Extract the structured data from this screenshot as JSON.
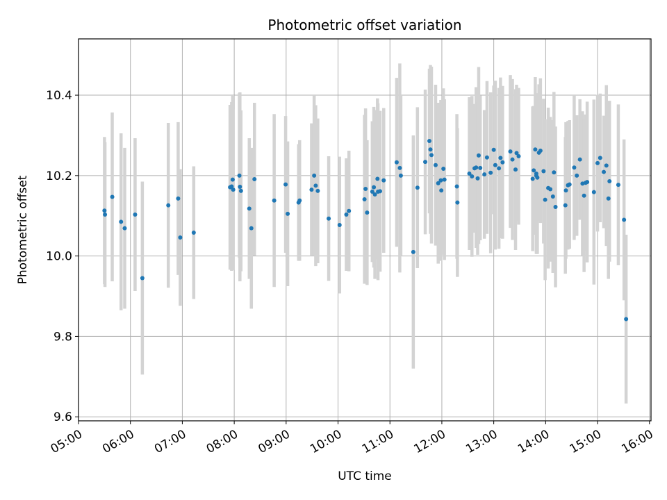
{
  "chart_data": {
    "type": "scatter",
    "title": "Photometric offset variation",
    "xlabel": "UTC time",
    "ylabel": "Photometric offset",
    "x_unit": "hours UTC",
    "xlim": [
      5.0,
      16.03
    ],
    "ylim": [
      9.59,
      10.54
    ],
    "grid": true,
    "x_ticks": [
      5,
      6,
      7,
      8,
      9,
      10,
      11,
      12,
      13,
      14,
      15,
      16
    ],
    "x_tick_labels": [
      "05:00",
      "06:00",
      "07:00",
      "08:00",
      "09:00",
      "10:00",
      "11:00",
      "12:00",
      "13:00",
      "14:00",
      "15:00",
      "16:00"
    ],
    "y_ticks": [
      9.6,
      9.8,
      10.0,
      10.2,
      10.4
    ],
    "y_tick_labels": [
      "9.6",
      "9.8",
      "10.0",
      "10.2",
      "10.4"
    ],
    "point_color": "#1f77b4",
    "errorbar_color": "#d3d3d3",
    "series": [
      {
        "name": "Photometric offset",
        "x": [
          5.5,
          5.51,
          5.65,
          5.82,
          5.89,
          6.09,
          6.23,
          6.73,
          6.92,
          6.96,
          7.22,
          7.92,
          7.95,
          7.98,
          7.97,
          8.1,
          8.11,
          8.13,
          8.29,
          8.33,
          8.39,
          8.77,
          8.99,
          9.03,
          9.24,
          9.26,
          9.49,
          9.54,
          9.57,
          9.61,
          9.82,
          10.03,
          10.16,
          10.21,
          10.51,
          10.53,
          10.56,
          10.66,
          10.69,
          10.71,
          10.76,
          10.77,
          10.81,
          10.88,
          11.13,
          11.19,
          11.21,
          11.45,
          11.53,
          11.68,
          11.76,
          11.78,
          11.8,
          11.88,
          11.93,
          11.98,
          11.99,
          12.03,
          12.05,
          12.29,
          12.3,
          12.53,
          12.58,
          12.63,
          12.66,
          12.69,
          12.71,
          12.74,
          12.82,
          12.87,
          12.94,
          13.0,
          13.03,
          13.1,
          13.13,
          13.17,
          13.32,
          13.36,
          13.42,
          13.44,
          13.48,
          13.75,
          13.77,
          13.8,
          13.82,
          13.82,
          13.84,
          13.87,
          13.9,
          13.96,
          13.99,
          14.05,
          14.09,
          14.14,
          14.16,
          14.19,
          14.38,
          14.39,
          14.43,
          14.46,
          14.55,
          14.6,
          14.66,
          14.71,
          14.74,
          14.77,
          14.8,
          14.93,
          15.0,
          15.05,
          15.12,
          15.17,
          15.21,
          15.23,
          15.4,
          15.51,
          15.55
        ],
        "y": [
          10.113,
          10.103,
          10.147,
          10.085,
          10.069,
          10.103,
          9.945,
          10.126,
          10.143,
          10.046,
          10.058,
          10.171,
          10.173,
          10.165,
          10.19,
          10.2,
          10.172,
          10.162,
          10.118,
          10.069,
          10.191,
          10.138,
          10.178,
          10.105,
          10.133,
          10.138,
          10.165,
          10.2,
          10.175,
          10.162,
          10.093,
          10.077,
          10.103,
          10.112,
          10.141,
          10.167,
          10.108,
          10.16,
          10.171,
          10.153,
          10.192,
          10.16,
          10.161,
          10.188,
          10.233,
          10.219,
          10.2,
          10.01,
          10.17,
          10.234,
          10.286,
          10.265,
          10.251,
          10.226,
          10.181,
          10.188,
          10.163,
          10.217,
          10.19,
          10.173,
          10.133,
          10.205,
          10.198,
          10.218,
          10.22,
          10.193,
          10.25,
          10.219,
          10.203,
          10.245,
          10.207,
          10.264,
          10.226,
          10.218,
          10.244,
          10.233,
          10.26,
          10.24,
          10.215,
          10.256,
          10.248,
          10.192,
          10.213,
          10.265,
          10.205,
          10.2,
          10.195,
          10.257,
          10.262,
          10.211,
          10.14,
          10.169,
          10.166,
          10.148,
          10.208,
          10.122,
          10.126,
          10.163,
          10.176,
          10.178,
          10.22,
          10.2,
          10.24,
          10.18,
          10.15,
          10.182,
          10.184,
          10.159,
          10.231,
          10.244,
          10.209,
          10.225,
          10.143,
          10.186,
          10.177,
          10.09,
          9.843
        ],
        "err": [
          0.183,
          0.18,
          0.21,
          0.22,
          0.2,
          0.19,
          0.24,
          0.205,
          0.19,
          0.17,
          0.165,
          0.205,
          0.21,
          0.2,
          0.21,
          0.205,
          0.235,
          0.2,
          0.175,
          0.2,
          0.19,
          0.215,
          0.17,
          0.18,
          0.145,
          0.15,
          0.165,
          0.2,
          0.2,
          0.18,
          0.155,
          0.17,
          0.14,
          0.15,
          0.21,
          0.2,
          0.18,
          0.175,
          0.2,
          0.21,
          0.2,
          0.22,
          0.2,
          0.18,
          0.21,
          0.26,
          0.2,
          0.29,
          0.2,
          0.18,
          0.18,
          0.21,
          0.22,
          0.2,
          0.2,
          0.2,
          0.16,
          0.2,
          0.2,
          0.18,
          0.185,
          0.19,
          0.2,
          0.16,
          0.2,
          0.19,
          0.22,
          0.18,
          0.16,
          0.19,
          0.2,
          0.16,
          0.21,
          0.2,
          0.2,
          0.19,
          0.19,
          0.2,
          0.2,
          0.17,
          0.17,
          0.18,
          0.16,
          0.18,
          0.2,
          0.19,
          0.19,
          0.17,
          0.18,
          0.18,
          0.2,
          0.2,
          0.18,
          0.19,
          0.2,
          0.2,
          0.17,
          0.17,
          0.16,
          0.16,
          0.18,
          0.15,
          0.15,
          0.18,
          0.19,
          0.17,
          0.2,
          0.23,
          0.17,
          0.16,
          0.14,
          0.2,
          0.2,
          0.2,
          0.2,
          0.2,
          0.21
        ]
      }
    ]
  }
}
